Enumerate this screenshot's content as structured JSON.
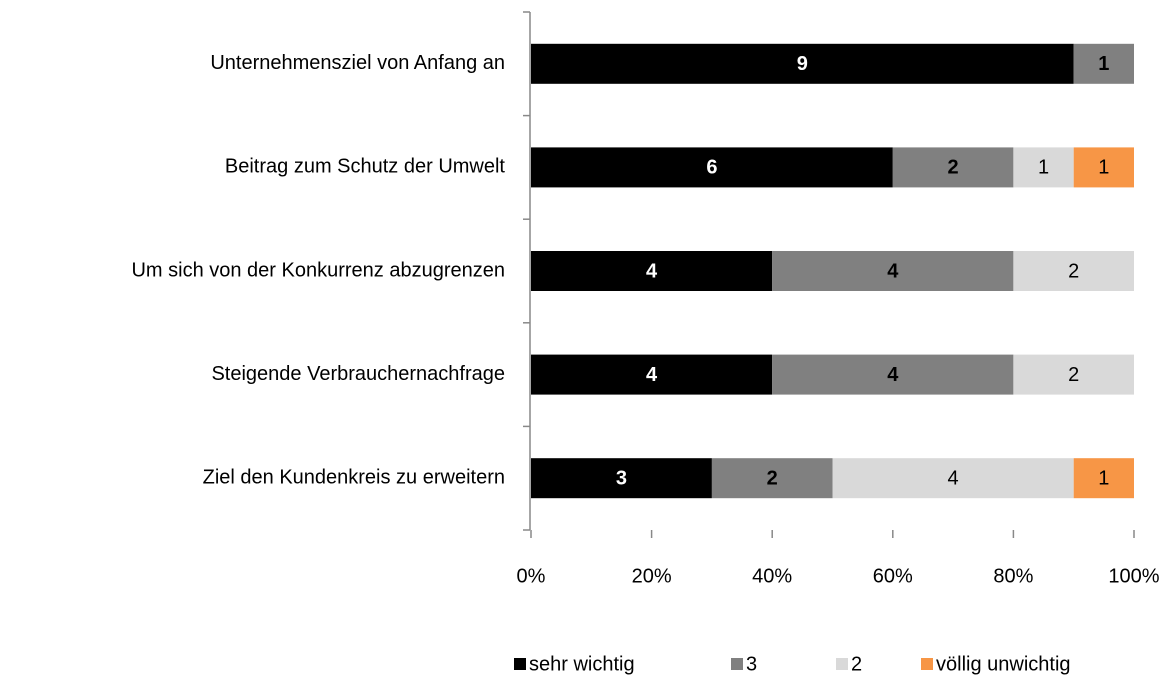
{
  "chart_data": {
    "type": "bar",
    "orientation": "horizontal",
    "stacked": "percent",
    "categories": [
      "Unternehmensziel von Anfang an",
      "Beitrag zum Schutz der Umwelt",
      "Um sich von der Konkurrenz abzugrenzen",
      "Steigende Verbrauchernachfrage",
      "Ziel den Kundenkreis zu erweitern"
    ],
    "series": [
      {
        "name": "sehr wichtig",
        "color": "#000000",
        "label_color": "#ffffff",
        "label_bold": true,
        "values": [
          9,
          6,
          4,
          4,
          3
        ]
      },
      {
        "name": "3",
        "color": "#808080",
        "label_color": "#000000",
        "label_bold": true,
        "values": [
          1,
          2,
          4,
          4,
          2
        ]
      },
      {
        "name": "2",
        "color": "#d9d9d9",
        "label_color": "#000000",
        "label_bold": false,
        "values": [
          null,
          1,
          2,
          2,
          4
        ]
      },
      {
        "name": "völlig unwichtig",
        "color": "#f79646",
        "label_color": "#000000",
        "label_bold": false,
        "values": [
          null,
          1,
          null,
          null,
          1
        ]
      }
    ],
    "xlim": [
      0,
      100
    ],
    "xticks": [
      {
        "value": 0,
        "label": "0%"
      },
      {
        "value": 20,
        "label": "20%"
      },
      {
        "value": 40,
        "label": "40%"
      },
      {
        "value": 60,
        "label": "60%"
      },
      {
        "value": 80,
        "label": "80%"
      },
      {
        "value": 100,
        "label": "100%"
      }
    ],
    "legend": "bottom"
  }
}
